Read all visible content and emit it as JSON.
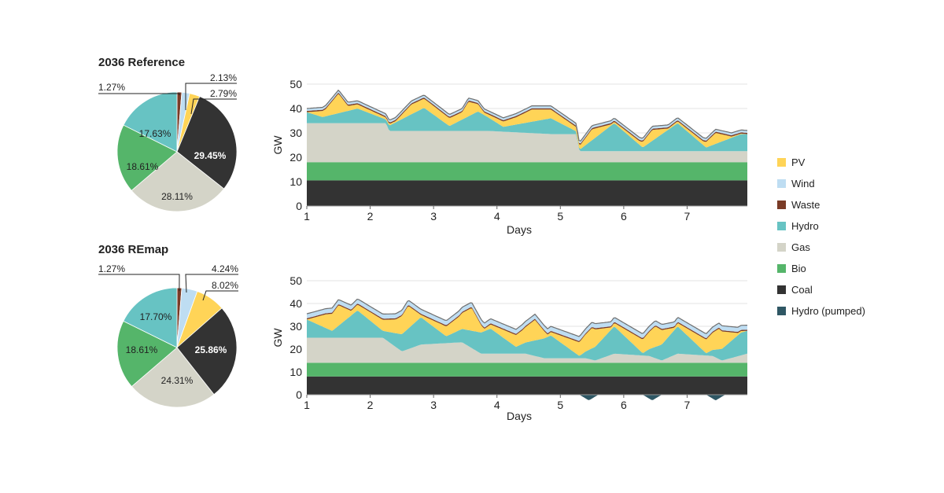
{
  "legend": [
    {
      "key": "pv",
      "label": "PV",
      "color": "#FFD457"
    },
    {
      "key": "wind",
      "label": "Wind",
      "color": "#BEDDF2"
    },
    {
      "key": "waste",
      "label": "Waste",
      "color": "#7A3B26"
    },
    {
      "key": "hydro",
      "label": "Hydro",
      "color": "#67C3C3"
    },
    {
      "key": "gas",
      "label": "Gas",
      "color": "#D4D4C8"
    },
    {
      "key": "bio",
      "label": "Bio",
      "color": "#55B56A"
    },
    {
      "key": "coal",
      "label": "Coal",
      "color": "#333333"
    },
    {
      "key": "hydro_pumped",
      "label": "Hydro (pumped)",
      "color": "#2F5764"
    }
  ],
  "chart_data": [
    {
      "type": "pie",
      "title": "2036 Reference",
      "slices": [
        {
          "key": "waste",
          "value": 1.27,
          "label": "1.27%"
        },
        {
          "key": "wind",
          "value": 2.13,
          "label": "2.13%"
        },
        {
          "key": "pv",
          "value": 2.79,
          "label": "2.79%"
        },
        {
          "key": "coal",
          "value": 29.45,
          "label": "29.45%"
        },
        {
          "key": "gas",
          "value": 28.11,
          "label": "28.11%"
        },
        {
          "key": "bio",
          "value": 18.61,
          "label": "18.61%"
        },
        {
          "key": "hydro",
          "value": 17.63,
          "label": "17.63%"
        }
      ]
    },
    {
      "type": "area",
      "xlabel": "Days",
      "ylabel": "GW",
      "ylim": [
        0,
        50
      ],
      "yticks": [
        "0",
        "10",
        "20",
        "30",
        "40",
        "50"
      ],
      "xticks": [
        "1",
        "2",
        "3",
        "4",
        "5",
        "6",
        "7"
      ],
      "xlim": [
        1,
        7.95
      ],
      "stack_order": [
        "coal",
        "bio",
        "gas",
        "hydro",
        "pv",
        "waste",
        "wind"
      ],
      "series": [
        {
          "key": "coal",
          "values": [
            [
              1,
              10.5
            ],
            [
              7.95,
              10.5
            ]
          ]
        },
        {
          "key": "bio",
          "values": [
            [
              1,
              7.5
            ],
            [
              7.95,
              7.5
            ]
          ]
        },
        {
          "key": "gas",
          "values": [
            [
              1,
              16
            ],
            [
              2.25,
              16
            ],
            [
              2.3,
              12.8
            ],
            [
              3.85,
              12.8
            ],
            [
              4.85,
              11.5
            ],
            [
              5.25,
              11.5
            ],
            [
              5.3,
              4.5
            ],
            [
              7.95,
              4.5
            ]
          ]
        },
        {
          "key": "hydro",
          "values": [
            [
              1,
              4.5
            ],
            [
              1.25,
              2.5
            ],
            [
              1.8,
              6
            ],
            [
              2.25,
              1.5
            ],
            [
              2.85,
              9.5
            ],
            [
              3.25,
              2
            ],
            [
              3.7,
              8
            ],
            [
              4.1,
              2
            ],
            [
              4.85,
              6.5
            ],
            [
              5.3,
              0.5
            ],
            [
              5.85,
              11.5
            ],
            [
              6.3,
              1.5
            ],
            [
              6.85,
              11.5
            ],
            [
              7.3,
              1.5
            ],
            [
              7.85,
              7
            ]
          ]
        },
        {
          "key": "pv",
          "values": [
            [
              1,
              0
            ],
            [
              1.3,
              3
            ],
            [
              1.5,
              8
            ],
            [
              1.65,
              2
            ],
            [
              2.4,
              0.5
            ],
            [
              2.65,
              4
            ],
            [
              3.45,
              3
            ],
            [
              3.55,
              6
            ],
            [
              3.8,
              1
            ],
            [
              4.3,
              3
            ],
            [
              4.55,
              5
            ],
            [
              5.3,
              1.5
            ],
            [
              5.5,
              4.5
            ],
            [
              5.8,
              0.5
            ],
            [
              6.25,
              1.5
            ],
            [
              6.45,
              4.5
            ],
            [
              6.7,
              0.5
            ],
            [
              7.25,
              1.5
            ],
            [
              7.45,
              4.5
            ],
            [
              7.7,
              0.5
            ],
            [
              7.95,
              0
            ]
          ]
        },
        {
          "key": "waste",
          "values": [
            [
              1,
              0.5
            ],
            [
              7.95,
              0.5
            ]
          ]
        },
        {
          "key": "wind",
          "values": [
            [
              1,
              1
            ],
            [
              7.95,
              1
            ]
          ]
        }
      ]
    },
    {
      "type": "pie",
      "title": "2036 REmap",
      "slices": [
        {
          "key": "waste",
          "value": 1.27,
          "label": "1.27%"
        },
        {
          "key": "wind",
          "value": 4.24,
          "label": "4.24%"
        },
        {
          "key": "pv",
          "value": 8.02,
          "label": "8.02%"
        },
        {
          "key": "coal",
          "value": 25.86,
          "label": "25.86%"
        },
        {
          "key": "gas",
          "value": 24.31,
          "label": "24.31%"
        },
        {
          "key": "bio",
          "value": 18.61,
          "label": "18.61%"
        },
        {
          "key": "hydro",
          "value": 17.7,
          "label": "17.70%"
        }
      ]
    },
    {
      "type": "area",
      "xlabel": "Days",
      "ylabel": "GW",
      "ylim": [
        0,
        50
      ],
      "yticks": [
        "0",
        "10",
        "20",
        "30",
        "40",
        "50"
      ],
      "xticks": [
        "1",
        "2",
        "3",
        "4",
        "5",
        "6",
        "7"
      ],
      "xlim": [
        1,
        7.95
      ],
      "stack_order": [
        "coal",
        "bio",
        "gas",
        "hydro",
        "pv",
        "waste",
        "wind"
      ],
      "negative_series": {
        "key": "hydro_pumped",
        "values": [
          [
            5.3,
            0
          ],
          [
            5.45,
            -2.5
          ],
          [
            5.6,
            0
          ],
          [
            6.3,
            0
          ],
          [
            6.45,
            -2.5
          ],
          [
            6.6,
            0
          ],
          [
            7.3,
            0
          ],
          [
            7.45,
            -2.5
          ],
          [
            7.6,
            0
          ]
        ]
      },
      "series": [
        {
          "key": "coal",
          "values": [
            [
              1,
              8
            ],
            [
              7.95,
              8
            ]
          ]
        },
        {
          "key": "bio",
          "values": [
            [
              1,
              6
            ],
            [
              7.95,
              6
            ]
          ]
        },
        {
          "key": "gas",
          "values": [
            [
              1,
              11
            ],
            [
              2.2,
              11
            ],
            [
              2.5,
              5
            ],
            [
              2.8,
              8
            ],
            [
              3.45,
              9
            ],
            [
              3.75,
              4
            ],
            [
              4.45,
              4
            ],
            [
              4.75,
              2
            ],
            [
              5.4,
              2
            ],
            [
              5.55,
              1
            ],
            [
              5.85,
              4
            ],
            [
              6.4,
              3
            ],
            [
              6.6,
              1
            ],
            [
              6.85,
              4
            ],
            [
              7.4,
              3
            ],
            [
              7.55,
              1
            ],
            [
              7.95,
              4
            ]
          ]
        },
        {
          "key": "hydro",
          "values": [
            [
              1,
              8
            ],
            [
              1.4,
              3
            ],
            [
              1.8,
              12
            ],
            [
              2.2,
              3
            ],
            [
              2.8,
              12
            ],
            [
              3.2,
              3
            ],
            [
              3.9,
              11
            ],
            [
              4.3,
              3
            ],
            [
              4.85,
              10
            ],
            [
              5.3,
              1
            ],
            [
              5.85,
              12
            ],
            [
              6.3,
              1
            ],
            [
              6.85,
              12
            ],
            [
              7.3,
              1
            ],
            [
              7.85,
              10
            ]
          ]
        },
        {
          "key": "pv",
          "values": [
            [
              1,
              0
            ],
            [
              1.3,
              6
            ],
            [
              1.5,
              9
            ],
            [
              1.7,
              2
            ],
            [
              2.4,
              6
            ],
            [
              2.6,
              10
            ],
            [
              2.8,
              1
            ],
            [
              3.4,
              6
            ],
            [
              3.6,
              10
            ],
            [
              3.8,
              1
            ],
            [
              4.4,
              6
            ],
            [
              4.6,
              9
            ],
            [
              4.8,
              1
            ],
            [
              5.3,
              6
            ],
            [
              5.5,
              9
            ],
            [
              5.8,
              1
            ],
            [
              6.3,
              6
            ],
            [
              6.5,
              9
            ],
            [
              6.8,
              1
            ],
            [
              7.3,
              6
            ],
            [
              7.5,
              9
            ],
            [
              7.8,
              1
            ],
            [
              7.95,
              0
            ]
          ]
        },
        {
          "key": "waste",
          "values": [
            [
              1,
              0.5
            ],
            [
              7.95,
              0.5
            ]
          ]
        },
        {
          "key": "wind",
          "values": [
            [
              1,
              2
            ],
            [
              7.95,
              2
            ]
          ]
        }
      ]
    }
  ]
}
